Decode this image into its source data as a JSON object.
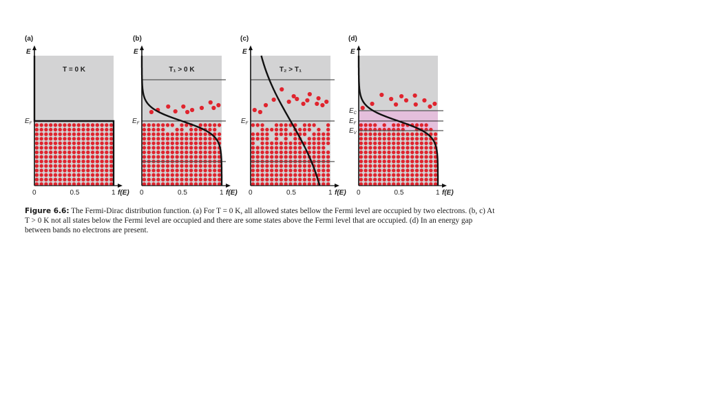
{
  "figure": {
    "panels": [
      {
        "id": "a",
        "label": "(a)",
        "title": "T = 0 K",
        "axis_label": "E",
        "levels": [
          {
            "name": "E_F",
            "text": "E",
            "sub": "F"
          }
        ]
      },
      {
        "id": "b",
        "label": "(b)",
        "title": "T₁ > 0 K",
        "axis_label": "E",
        "levels": [
          {
            "name": "E_F",
            "text": "E",
            "sub": "F"
          }
        ]
      },
      {
        "id": "c",
        "label": "(c)",
        "title": "T₂ > T₁",
        "axis_label": "E",
        "levels": [
          {
            "name": "E_F",
            "text": "E",
            "sub": "F"
          }
        ]
      },
      {
        "id": "d",
        "label": "(d)",
        "title": "",
        "axis_label": "E",
        "levels": [
          {
            "name": "E_C",
            "text": "E",
            "sub": "C"
          },
          {
            "name": "E_F",
            "text": "E",
            "sub": "F"
          },
          {
            "name": "E_V",
            "text": "E",
            "sub": "V"
          }
        ]
      }
    ],
    "x_ticks": [
      "0",
      "0.5",
      "1"
    ],
    "x_axis_label": "f(E)",
    "colors": {
      "background": "#d3d3d4",
      "electron": "#e0242e",
      "curve": "#111111",
      "level_line": "#555555",
      "gap": "#e4bfdc"
    }
  },
  "caption": {
    "label": "Figure 6.6:",
    "text": "The Fermi-Dirac distribution function. (a) For T = 0 K, all allowed states bellow the Fermi level are occupied by two electrons. (b, c) At T > 0 K not all states below the Fermi level are occupied and there are some states above the Fermi level that are occupied. (d) In an energy gap between bands no electrons are present."
  }
}
